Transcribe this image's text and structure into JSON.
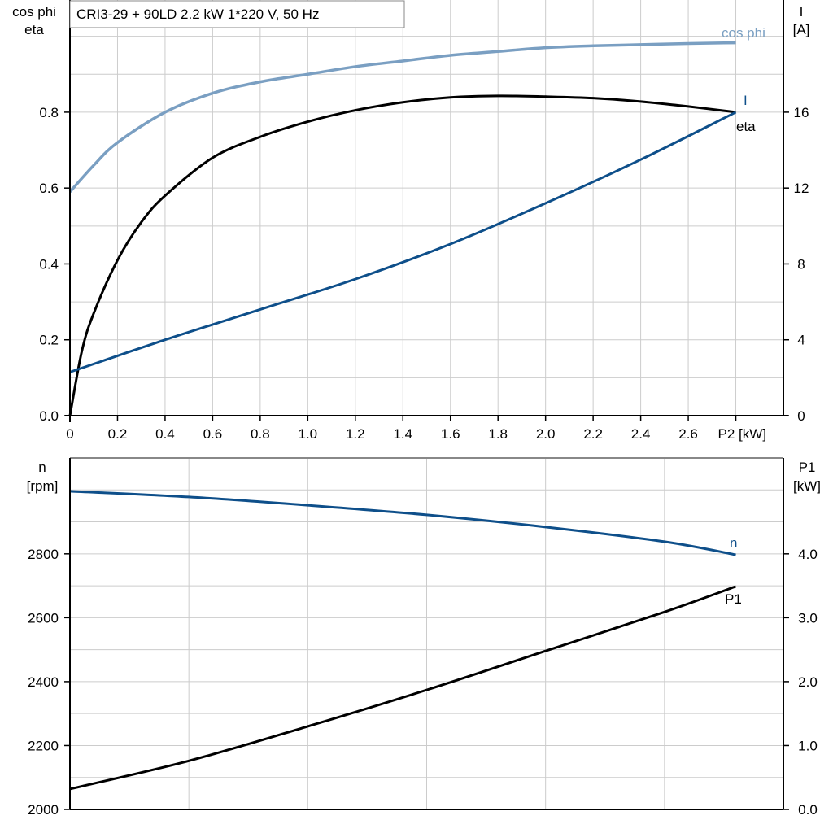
{
  "title": "CRI3-29 + 90LD   2.2 kW   1*220 V, 50 Hz",
  "colors": {
    "cos_phi": "#7a9fc2",
    "eta": "#000000",
    "I": "#0e4f8a",
    "n": "#0e4f8a",
    "P1": "#000000",
    "grid": "#cccccc"
  },
  "chart_data": [
    {
      "type": "line",
      "xlabel": "P2 [kW]",
      "ylabel_left": [
        "cos phi",
        "eta"
      ],
      "ylabel_right": [
        "I",
        "[A]"
      ],
      "xlim": [
        0,
        3.0
      ],
      "ylim_left": [
        0,
        1.1
      ],
      "ylim_right": [
        0,
        22
      ],
      "xticks": [
        "0",
        "0.2",
        "0.4",
        "0.6",
        "0.8",
        "1.0",
        "1.2",
        "1.4",
        "1.6",
        "1.8",
        "2.0",
        "2.2",
        "2.4",
        "2.6"
      ],
      "yticks_left": [
        "0.0",
        "0.2",
        "0.4",
        "0.6",
        "0.8"
      ],
      "yticks_right": [
        "0",
        "4",
        "8",
        "12",
        "16"
      ],
      "grid": true,
      "series": [
        {
          "name": "cos phi",
          "axis": "left",
          "x": [
            0,
            0.1,
            0.2,
            0.4,
            0.6,
            0.8,
            1.0,
            1.2,
            1.4,
            1.6,
            1.8,
            2.0,
            2.2,
            2.4,
            2.6,
            2.8
          ],
          "y": [
            0.59,
            0.66,
            0.72,
            0.8,
            0.85,
            0.88,
            0.9,
            0.92,
            0.935,
            0.95,
            0.96,
            0.97,
            0.975,
            0.978,
            0.981,
            0.983
          ]
        },
        {
          "name": "eta",
          "axis": "left",
          "x": [
            0,
            0.05,
            0.1,
            0.2,
            0.3,
            0.4,
            0.6,
            0.8,
            1.0,
            1.2,
            1.4,
            1.6,
            1.8,
            2.0,
            2.2,
            2.4,
            2.6,
            2.8
          ],
          "y": [
            0,
            0.17,
            0.27,
            0.41,
            0.51,
            0.58,
            0.68,
            0.735,
            0.775,
            0.805,
            0.826,
            0.839,
            0.843,
            0.841,
            0.837,
            0.828,
            0.815,
            0.8
          ]
        },
        {
          "name": "I",
          "axis": "right",
          "x": [
            0,
            0.4,
            0.8,
            1.2,
            1.6,
            2.0,
            2.4,
            2.8
          ],
          "y": [
            2.3,
            4.0,
            5.6,
            7.2,
            9.05,
            11.2,
            13.5,
            16.0
          ]
        }
      ]
    },
    {
      "type": "line",
      "ylabel_left": [
        "n",
        "[rpm]"
      ],
      "ylabel_right": [
        "P1",
        "[kW]"
      ],
      "xlim": [
        0,
        3.0
      ],
      "ylim_left": [
        2000,
        3100
      ],
      "ylim_right": [
        0,
        5.5
      ],
      "yticks_left": [
        "2000",
        "2200",
        "2400",
        "2600",
        "2800"
      ],
      "yticks_right": [
        "0.0",
        "1.0",
        "2.0",
        "3.0",
        "4.0"
      ],
      "grid": true,
      "series": [
        {
          "name": "n",
          "axis": "left",
          "x": [
            0,
            0.5,
            1.0,
            1.5,
            2.0,
            2.5,
            2.8
          ],
          "y": [
            2996,
            2978,
            2952,
            2922,
            2884,
            2838,
            2797
          ]
        },
        {
          "name": "P1",
          "axis": "right",
          "x": [
            0,
            0.5,
            1.0,
            1.5,
            2.0,
            2.5,
            2.8
          ],
          "y": [
            0.32,
            0.76,
            1.3,
            1.87,
            2.48,
            3.09,
            3.49
          ]
        }
      ]
    }
  ]
}
